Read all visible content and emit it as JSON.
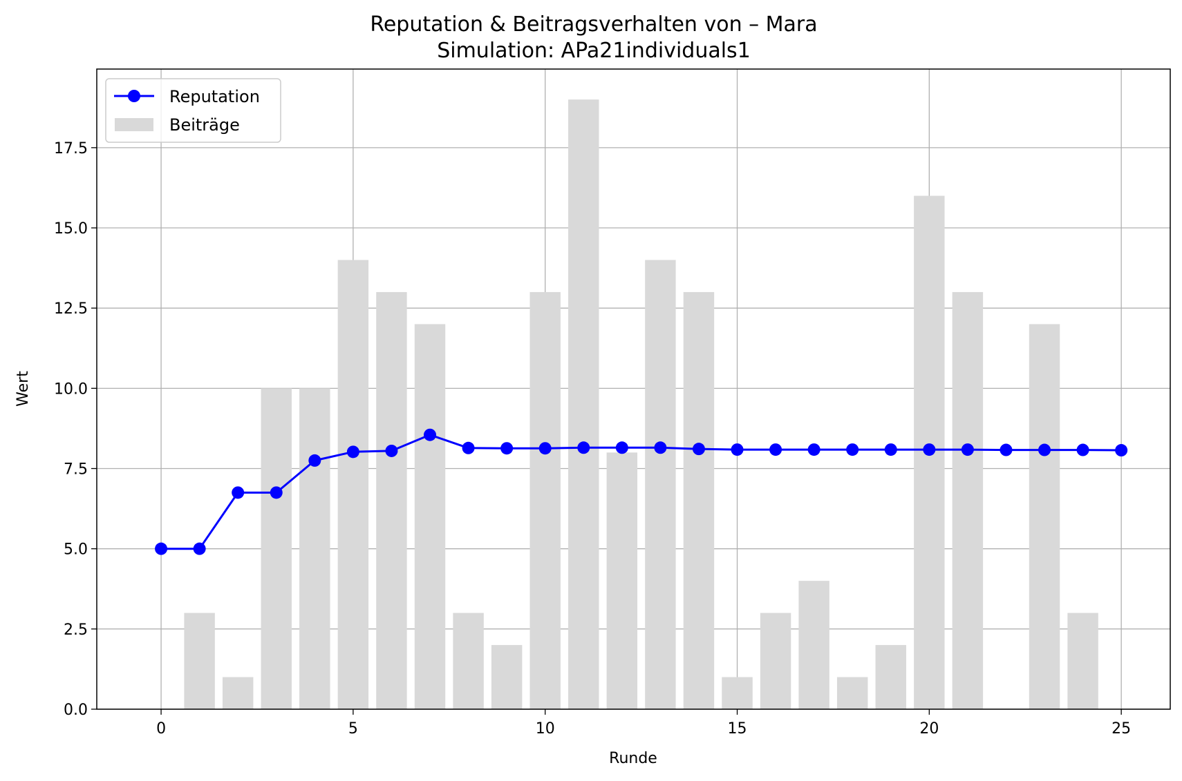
{
  "chart_data": {
    "type": "bar+line",
    "title": "Reputation & Beitragsverhalten von – Mara",
    "subtitle": "Simulation: APa21individuals1",
    "xlabel": "Runde",
    "ylabel": "Wert",
    "xlim": [
      -1.675,
      26.275
    ],
    "ylim": [
      0,
      19.95
    ],
    "x_ticks": [
      0,
      5,
      10,
      15,
      20,
      25
    ],
    "y_ticks": [
      0.0,
      2.5,
      5.0,
      7.5,
      10.0,
      12.5,
      15.0,
      17.5
    ],
    "grid": true,
    "legend_position": "top-left",
    "x": [
      0,
      1,
      2,
      3,
      4,
      5,
      6,
      7,
      8,
      9,
      10,
      11,
      12,
      13,
      14,
      15,
      16,
      17,
      18,
      19,
      20,
      21,
      22,
      23,
      24,
      25
    ],
    "series": [
      {
        "name": "Reputation",
        "kind": "line",
        "marker": "circle",
        "color": "#0000ff",
        "values": [
          5.0,
          5.0,
          6.75,
          6.75,
          7.75,
          8.02,
          8.05,
          8.55,
          8.14,
          8.13,
          8.13,
          8.15,
          8.15,
          8.15,
          8.11,
          8.09,
          8.09,
          8.09,
          8.09,
          8.09,
          8.09,
          8.09,
          8.08,
          8.08,
          8.08,
          8.07
        ]
      },
      {
        "name": "Beiträge",
        "kind": "bar",
        "color": "#d9d9d9",
        "values": [
          0,
          3,
          1,
          10,
          10,
          14,
          13,
          12,
          3,
          2,
          13,
          19,
          8,
          14,
          13,
          1,
          3,
          4,
          1,
          2,
          16,
          13,
          0,
          12,
          3,
          0
        ]
      }
    ]
  }
}
